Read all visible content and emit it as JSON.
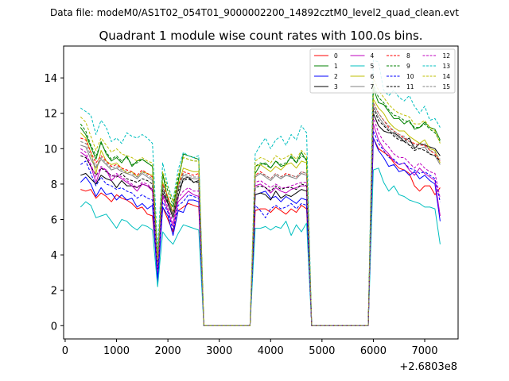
{
  "chart_data": {
    "type": "line",
    "suptitle": "Data file: modeM0/AS1T02_054T01_9000002200_14892cztM0_level2_quad_clean.evt",
    "title": "Quadrant 1 module wise count rates with 100.0s bins.",
    "xlabel": "",
    "ylabel": "",
    "x_offset_label": "+2.6803e8",
    "xlim": [
      -30,
      7650
    ],
    "ylim": [
      -0.75,
      15.8
    ],
    "x_ticks": [
      0,
      1000,
      2000,
      3000,
      4000,
      5000,
      6000,
      7000
    ],
    "x_tick_labels": [
      "0",
      "1000",
      "2000",
      "3000",
      "4000",
      "5000",
      "6000",
      "7000"
    ],
    "y_ticks": [
      0,
      2,
      4,
      6,
      8,
      10,
      12,
      14
    ],
    "y_tick_labels": [
      "0",
      "2",
      "4",
      "6",
      "8",
      "10",
      "12",
      "14"
    ],
    "legend_position": "upper-right",
    "x": [
      300,
      400,
      500,
      600,
      700,
      800,
      900,
      1000,
      1100,
      1200,
      1300,
      1400,
      1500,
      1600,
      1700,
      1800,
      1900,
      2000,
      2100,
      2200,
      2300,
      2400,
      2500,
      2600,
      2700,
      2800,
      3600,
      3700,
      3800,
      3900,
      4000,
      4100,
      4200,
      4300,
      4400,
      4500,
      4600,
      4700,
      4800,
      5900,
      6000,
      6100,
      6200,
      6300,
      6400,
      6500,
      6600,
      6700,
      6800,
      6900,
      7000,
      7100,
      7200,
      7300
    ],
    "series": [
      {
        "name": "0",
        "color": "#ff0000",
        "dash": "solid",
        "values": [
          7.7,
          7.6,
          7.7,
          7.2,
          7.5,
          7.3,
          7.0,
          7.4,
          7.2,
          7.1,
          6.9,
          6.6,
          6.7,
          6.3,
          6.2,
          3.0,
          6.7,
          6.0,
          5.3,
          6.5,
          6.7,
          6.9,
          6.8,
          6.7,
          0.0,
          0.0,
          0.0,
          6.5,
          6.6,
          6.6,
          6.4,
          6.7,
          6.5,
          6.3,
          6.6,
          6.4,
          6.8,
          6.6,
          0.0,
          0.0,
          10.6,
          10.0,
          9.8,
          9.6,
          9.2,
          8.9,
          8.8,
          8.6,
          7.9,
          7.6,
          7.9,
          7.9,
          7.4,
          7.8
        ]
      },
      {
        "name": "1",
        "color": "#008000",
        "dash": "solid",
        "values": [
          11.2,
          10.8,
          10.1,
          9.4,
          10.4,
          9.7,
          9.3,
          9.5,
          9.2,
          9.6,
          9.0,
          9.3,
          9.4,
          9.2,
          9.0,
          3.7,
          8.6,
          7.1,
          6.7,
          8.1,
          9.7,
          9.6,
          9.5,
          9.4,
          0.0,
          0.0,
          0.0,
          8.6,
          9.1,
          9.2,
          8.9,
          9.3,
          9.0,
          9.1,
          9.6,
          9.2,
          9.8,
          9.3,
          0.0,
          0.0,
          13.4,
          12.6,
          12.5,
          12.1,
          11.7,
          11.7,
          11.4,
          11.6,
          11.1,
          11.2,
          11.5,
          11.2,
          11.1,
          10.5
        ]
      },
      {
        "name": "2",
        "color": "#0000ff",
        "dash": "solid",
        "values": [
          8.1,
          8.4,
          8.0,
          7.3,
          7.8,
          7.4,
          7.5,
          7.1,
          7.4,
          7.1,
          7.2,
          6.7,
          6.9,
          6.6,
          6.8,
          2.4,
          6.7,
          6.2,
          5.1,
          6.5,
          6.4,
          7.1,
          7.1,
          7.0,
          0.0,
          0.0,
          0.0,
          7.4,
          7.5,
          7.6,
          7.2,
          7.3,
          7.0,
          7.3,
          7.1,
          6.9,
          7.2,
          7.1,
          0.0,
          0.0,
          10.6,
          9.9,
          9.5,
          9.0,
          9.1,
          8.7,
          8.8,
          8.5,
          8.7,
          8.3,
          8.5,
          8.2,
          8.0,
          5.9
        ]
      },
      {
        "name": "3",
        "color": "#000000",
        "dash": "solid",
        "values": [
          8.5,
          8.6,
          8.3,
          8.0,
          8.5,
          8.3,
          8.2,
          7.8,
          8.2,
          7.9,
          7.9,
          7.8,
          8.0,
          7.9,
          7.7,
          3.2,
          7.5,
          6.9,
          6.1,
          7.3,
          8.3,
          8.4,
          8.1,
          8.2,
          0.0,
          0.0,
          0.0,
          7.4,
          7.5,
          7.4,
          7.1,
          7.6,
          7.2,
          7.4,
          7.3,
          7.5,
          7.7,
          7.6,
          0.0,
          0.0,
          12.0,
          11.3,
          11.0,
          10.9,
          10.9,
          10.7,
          10.4,
          10.6,
          10.0,
          10.3,
          10.2,
          10.1,
          10.0,
          9.6
        ]
      },
      {
        "name": "4",
        "color": "#bf00bf",
        "dash": "solid",
        "values": [
          9.8,
          9.6,
          9.0,
          8.1,
          8.9,
          8.8,
          8.2,
          8.5,
          8.3,
          8.1,
          7.9,
          7.6,
          8.0,
          7.9,
          7.6,
          3.0,
          7.3,
          6.5,
          5.6,
          7.0,
          7.3,
          7.6,
          7.4,
          7.3,
          0.0,
          0.0,
          0.0,
          7.9,
          8.0,
          7.8,
          7.5,
          7.8,
          7.6,
          7.5,
          7.7,
          7.8,
          7.9,
          7.9,
          0.0,
          0.0,
          11.4,
          10.5,
          10.0,
          9.7,
          9.3,
          9.1,
          9.2,
          8.8,
          8.5,
          8.9,
          8.6,
          8.4,
          8.2,
          6.2
        ]
      },
      {
        "name": "5",
        "color": "#00bfbf",
        "dash": "solid",
        "values": [
          6.7,
          7.0,
          6.8,
          6.1,
          6.2,
          6.3,
          5.9,
          5.5,
          6.0,
          5.9,
          5.6,
          5.4,
          5.7,
          5.6,
          5.4,
          2.2,
          5.3,
          4.9,
          4.6,
          5.2,
          5.7,
          5.6,
          5.5,
          5.4,
          0.0,
          0.0,
          0.0,
          5.5,
          5.5,
          5.6,
          5.4,
          5.6,
          5.5,
          5.9,
          5.1,
          5.7,
          5.3,
          5.8,
          0.0,
          0.0,
          8.8,
          8.9,
          8.1,
          7.6,
          7.9,
          7.4,
          7.3,
          7.1,
          7.0,
          6.9,
          6.7,
          6.7,
          6.6,
          4.6
        ]
      },
      {
        "name": "6",
        "color": "#bfbf00",
        "dash": "solid",
        "values": [
          10.9,
          10.6,
          9.8,
          8.6,
          9.9,
          9.3,
          9.1,
          9.2,
          8.9,
          8.6,
          8.7,
          8.4,
          8.7,
          8.6,
          8.5,
          3.4,
          8.1,
          7.3,
          6.4,
          7.9,
          8.9,
          8.8,
          8.7,
          8.7,
          0.0,
          0.0,
          0.0,
          9.0,
          9.1,
          8.9,
          8.7,
          9.0,
          8.8,
          9.1,
          9.2,
          8.9,
          9.3,
          9.2,
          0.0,
          0.0,
          12.8,
          12.3,
          12.0,
          11.5,
          11.2,
          11.0,
          11.0,
          10.7,
          10.5,
          10.3,
          10.5,
          10.0,
          9.9,
          9.2
        ]
      },
      {
        "name": "7",
        "color": "#808080",
        "dash": "solid",
        "values": [
          10.2,
          10.1,
          9.4,
          8.9,
          9.4,
          9.1,
          8.8,
          8.9,
          8.7,
          8.6,
          8.5,
          8.3,
          8.6,
          8.4,
          8.2,
          3.3,
          7.8,
          7.0,
          6.2,
          7.7,
          8.5,
          8.4,
          8.3,
          8.3,
          0.0,
          0.0,
          0.0,
          8.4,
          8.6,
          8.4,
          8.2,
          8.5,
          8.3,
          8.5,
          8.4,
          8.3,
          8.6,
          8.5,
          0.0,
          0.0,
          12.4,
          11.8,
          11.4,
          11.1,
          10.8,
          10.6,
          10.6,
          10.2,
          10.1,
          10.0,
          10.1,
          9.7,
          9.6,
          9.1
        ]
      },
      {
        "name": "8",
        "color": "#ff0000",
        "dash": "dashed",
        "values": [
          10.6,
          10.5,
          9.8,
          9.2,
          9.6,
          9.3,
          9.0,
          9.1,
          8.9,
          8.8,
          8.7,
          8.5,
          8.8,
          8.6,
          8.4,
          3.5,
          8.0,
          7.2,
          6.3,
          7.9,
          8.7,
          8.6,
          8.5,
          8.6,
          0.0,
          0.0,
          0.0,
          8.5,
          8.7,
          8.5,
          8.3,
          8.6,
          8.4,
          8.6,
          8.5,
          8.4,
          8.7,
          8.6,
          0.0,
          0.0,
          12.6,
          12.0,
          11.6,
          11.2,
          11.0,
          10.8,
          10.6,
          10.4,
          10.3,
          10.2,
          10.2,
          9.9,
          9.7,
          9.3
        ]
      },
      {
        "name": "9",
        "color": "#008000",
        "dash": "dashed",
        "values": [
          11.4,
          11.0,
          10.2,
          9.6,
          10.3,
          9.8,
          9.4,
          9.6,
          9.3,
          9.5,
          9.1,
          9.2,
          9.4,
          9.2,
          9.0,
          3.8,
          8.5,
          7.6,
          6.8,
          8.3,
          9.5,
          9.4,
          9.3,
          9.3,
          0.0,
          0.0,
          0.0,
          9.0,
          9.2,
          9.1,
          8.9,
          9.3,
          9.1,
          9.2,
          9.5,
          9.2,
          9.6,
          9.4,
          0.0,
          0.0,
          13.6,
          12.9,
          12.6,
          12.2,
          11.9,
          11.8,
          11.6,
          11.5,
          11.2,
          11.2,
          11.4,
          11.1,
          10.9,
          10.4
        ]
      },
      {
        "name": "10",
        "color": "#0000ff",
        "dash": "dashed",
        "values": [
          9.1,
          9.3,
          8.6,
          7.9,
          8.4,
          8.0,
          7.9,
          7.7,
          7.8,
          7.6,
          7.5,
          7.2,
          7.4,
          7.2,
          7.1,
          2.7,
          7.0,
          6.4,
          5.4,
          6.8,
          7.0,
          7.4,
          7.3,
          7.2,
          0.0,
          0.0,
          0.0,
          6.8,
          6.5,
          6.1,
          6.6,
          6.8,
          6.6,
          6.7,
          6.9,
          6.6,
          6.9,
          6.8,
          0.0,
          0.0,
          11.0,
          10.3,
          9.9,
          9.5,
          9.4,
          9.1,
          9.2,
          8.9,
          8.8,
          8.6,
          8.7,
          8.5,
          8.3,
          7.0
        ]
      },
      {
        "name": "11",
        "color": "#000000",
        "dash": "dashed",
        "values": [
          9.6,
          9.5,
          9.0,
          8.5,
          8.9,
          8.7,
          8.5,
          8.4,
          8.6,
          8.3,
          8.2,
          8.1,
          8.3,
          8.2,
          8.0,
          3.2,
          7.7,
          7.0,
          6.3,
          7.6,
          8.2,
          8.3,
          8.1,
          8.1,
          0.0,
          0.0,
          0.0,
          7.8,
          7.9,
          7.8,
          7.6,
          7.9,
          7.7,
          7.8,
          7.8,
          7.7,
          8.0,
          7.9,
          0.0,
          0.0,
          12.3,
          11.6,
          11.3,
          11.0,
          10.7,
          10.5,
          10.4,
          10.2,
          9.9,
          10.0,
          9.9,
          9.7,
          9.6,
          9.3
        ]
      },
      {
        "name": "12",
        "color": "#bf00bf",
        "dash": "dashed",
        "values": [
          10.0,
          9.8,
          9.1,
          8.4,
          9.0,
          8.8,
          8.4,
          8.6,
          8.4,
          8.2,
          8.0,
          7.8,
          8.1,
          8.0,
          7.7,
          3.1,
          7.4,
          6.7,
          5.8,
          7.2,
          7.6,
          7.8,
          7.6,
          7.6,
          0.0,
          0.0,
          0.0,
          8.1,
          8.2,
          8.0,
          7.8,
          8.0,
          7.8,
          7.8,
          7.9,
          8.0,
          8.1,
          8.1,
          0.0,
          0.0,
          11.8,
          10.9,
          10.4,
          10.1,
          9.7,
          9.5,
          9.5,
          9.2,
          8.9,
          9.2,
          8.9,
          8.7,
          8.6,
          7.2
        ]
      },
      {
        "name": "13",
        "color": "#00bfbf",
        "dash": "dashed",
        "values": [
          12.3,
          12.1,
          11.9,
          10.8,
          11.6,
          11.2,
          10.4,
          10.6,
          10.3,
          10.9,
          10.7,
          10.6,
          10.8,
          10.6,
          10.3,
          4.3,
          9.2,
          7.9,
          7.1,
          8.8,
          9.8,
          9.6,
          9.5,
          9.6,
          0.0,
          0.0,
          0.0,
          9.7,
          10.2,
          10.6,
          10.0,
          10.5,
          10.7,
          10.2,
          10.8,
          10.5,
          11.3,
          10.9,
          0.0,
          0.0,
          15.0,
          14.9,
          13.3,
          13.0,
          13.3,
          12.9,
          12.7,
          13.0,
          12.4,
          12.0,
          12.4,
          11.6,
          11.7,
          11.2
        ]
      },
      {
        "name": "14",
        "color": "#bfbf00",
        "dash": "dashed",
        "values": [
          11.8,
          11.5,
          10.7,
          9.9,
          10.6,
          10.2,
          9.8,
          10.0,
          9.7,
          9.6,
          9.5,
          9.3,
          9.5,
          9.3,
          9.2,
          3.8,
          8.7,
          7.8,
          7.0,
          8.5,
          9.5,
          9.4,
          9.3,
          9.3,
          0.0,
          0.0,
          0.0,
          9.3,
          9.5,
          9.4,
          9.2,
          9.6,
          9.4,
          9.5,
          9.7,
          9.4,
          9.9,
          9.6,
          0.0,
          0.0,
          14.0,
          13.3,
          12.9,
          12.5,
          12.2,
          12.0,
          11.9,
          11.8,
          11.4,
          11.4,
          11.6,
          11.2,
          11.0,
          10.3
        ]
      },
      {
        "name": "15",
        "color": "#808080",
        "dash": "dashed",
        "values": [
          10.4,
          10.3,
          9.6,
          9.0,
          9.5,
          9.2,
          8.9,
          9.0,
          8.8,
          8.7,
          8.6,
          8.4,
          8.7,
          8.5,
          8.3,
          3.4,
          7.9,
          7.1,
          6.3,
          7.8,
          8.6,
          8.5,
          8.4,
          8.4,
          0.0,
          0.0,
          0.0,
          8.4,
          8.6,
          8.5,
          8.3,
          8.6,
          8.4,
          8.5,
          8.5,
          8.4,
          8.7,
          8.6,
          0.0,
          0.0,
          12.6,
          12.0,
          11.6,
          11.3,
          11.0,
          10.8,
          10.7,
          10.4,
          10.2,
          10.2,
          10.3,
          9.9,
          9.8,
          9.4
        ]
      }
    ]
  }
}
